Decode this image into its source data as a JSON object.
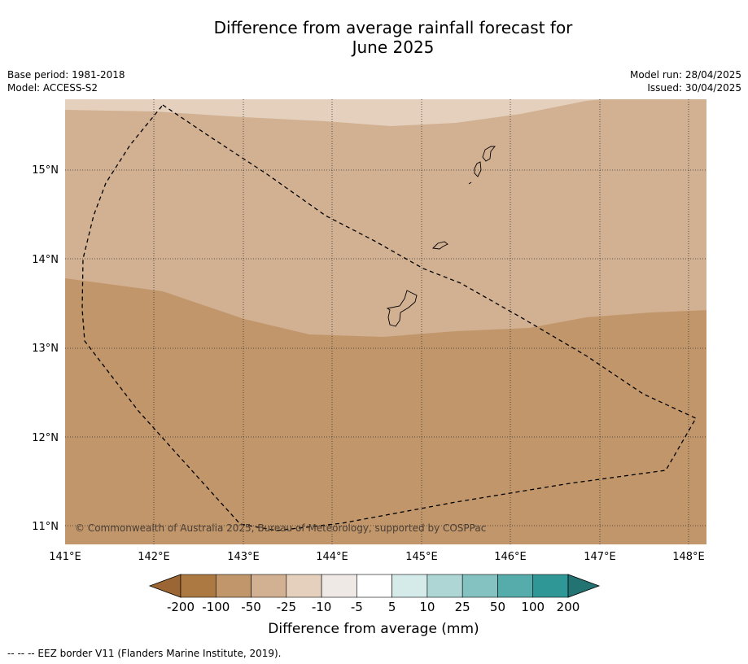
{
  "title_line1": "Difference from average rainfall forecast for",
  "title_line2": "June 2025",
  "meta_left": {
    "base_period": "Base period: 1981-2018",
    "model": "Model: ACCESS-S2"
  },
  "meta_right": {
    "model_run": "Model run: 28/04/2025",
    "issued": "Issued: 30/04/2025"
  },
  "map": {
    "lon_labels": [
      "141°E",
      "142°E",
      "143°E",
      "144°E",
      "145°E",
      "146°E",
      "147°E",
      "148°E"
    ],
    "lat_labels": [
      "15°N",
      "14°N",
      "13°N",
      "12°N",
      "11°N"
    ],
    "copyright": "© Commonwealth of Australia 2025, Bureau of Meteorology, supported by COSPPac",
    "regions": [
      {
        "category": "-10 to -25",
        "color": "#e4d0bd"
      },
      {
        "category": "-25 to -50",
        "color": "#d2b092"
      },
      {
        "category": "-50 to -100",
        "color": "#c1966b"
      }
    ]
  },
  "colorbar": {
    "label": "Difference from average (mm)",
    "ticks": [
      "-200",
      "-100",
      "-50",
      "-25",
      "-10",
      "-5",
      "5",
      "10",
      "25",
      "50",
      "100",
      "200"
    ],
    "colors": [
      "#9c6634",
      "#ad7943",
      "#c1966b",
      "#d2b092",
      "#e4d0bd",
      "#efe9e5",
      "#ffffff",
      "#d5ebea",
      "#aed6d4",
      "#84c2c1",
      "#56abab",
      "#309797",
      "#237372"
    ]
  },
  "footnote": "--  --  -- EEZ border V11 (Flanders Marine Institute, 2019)."
}
